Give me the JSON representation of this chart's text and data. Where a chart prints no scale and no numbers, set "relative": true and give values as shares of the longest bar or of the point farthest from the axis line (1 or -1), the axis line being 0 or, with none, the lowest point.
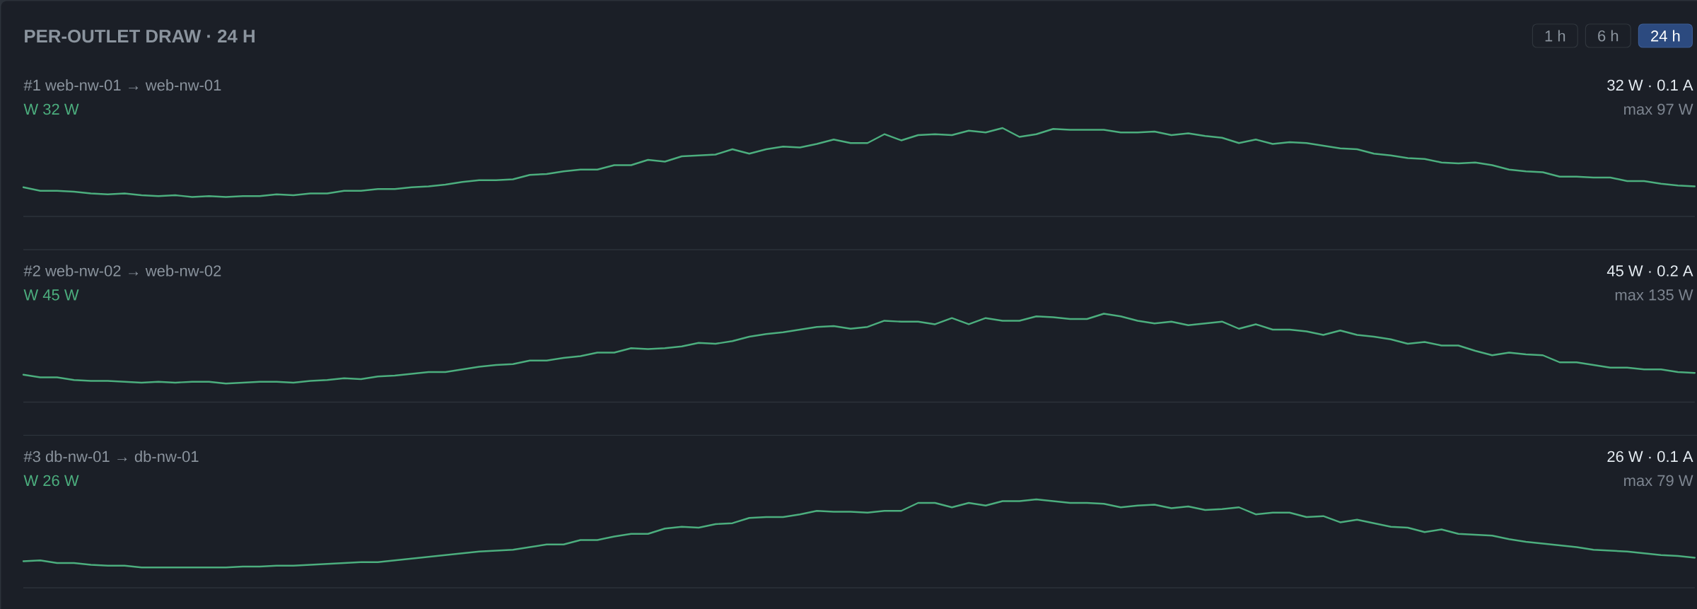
{
  "chart_data": [
    {
      "type": "other",
      "title": "PER-OUTLET DRAW · 24 H",
      "annotations": [
        "1 h",
        "6 h",
        "24 h"
      ]
    },
    {
      "type": "line",
      "title": "#1 web-nw-01 → web-nw-01",
      "subtitle": "W 32 W",
      "annotations": [
        "32 W · 0.1 A",
        "max 97 W"
      ],
      "relative": true,
      "categories": [
        null,
        null,
        null,
        null,
        null,
        null,
        null,
        null,
        null,
        null,
        null,
        null,
        null,
        null,
        null,
        null,
        null,
        null,
        null,
        null,
        null,
        null,
        null,
        null,
        null,
        null,
        null,
        null,
        null,
        null,
        null,
        null,
        null,
        null,
        null,
        null,
        null,
        null,
        null,
        null,
        null,
        null,
        null,
        null,
        null,
        null,
        null,
        null,
        null,
        null,
        null,
        null,
        null,
        null,
        null,
        null,
        null,
        null,
        null,
        null,
        null,
        null,
        null,
        null,
        null,
        null,
        null,
        null,
        null,
        null,
        null,
        null,
        null,
        null,
        null,
        null,
        null,
        null,
        null,
        null,
        null,
        null,
        null,
        null,
        null,
        null,
        null,
        null,
        null,
        null,
        null,
        null,
        null,
        null,
        null,
        null,
        null,
        null,
        null,
        null
      ],
      "series": [
        {
          "color": "#4cae7e",
          "values": [
            0.33,
            0.29,
            0.29,
            0.28,
            0.26,
            0.25,
            0.26,
            0.24,
            0.23,
            0.24,
            0.22,
            0.23,
            0.22,
            0.23,
            0.23,
            0.25,
            0.24,
            0.26,
            0.26,
            0.29,
            0.29,
            0.31,
            0.31,
            0.33,
            0.34,
            0.36,
            0.39,
            0.41,
            0.41,
            0.42,
            0.47,
            0.48,
            0.51,
            0.53,
            0.53,
            0.58,
            0.58,
            0.64,
            0.62,
            0.68,
            0.69,
            0.7,
            0.76,
            0.71,
            0.76,
            0.79,
            0.78,
            0.82,
            0.87,
            0.83,
            0.83,
            0.93,
            0.86,
            0.92,
            0.93,
            0.92,
            0.97,
            0.95,
            1.0,
            0.9,
            0.93,
            0.99,
            0.98,
            0.98,
            0.98,
            0.95,
            0.95,
            0.96,
            0.92,
            0.94,
            0.91,
            0.89,
            0.83,
            0.87,
            0.82,
            0.84,
            0.83,
            0.8,
            0.77,
            0.76,
            0.71,
            0.69,
            0.66,
            0.65,
            0.61,
            0.6,
            0.61,
            0.58,
            0.53,
            0.51,
            0.5,
            0.45,
            0.45,
            0.44,
            0.44,
            0.4,
            0.4,
            0.37,
            0.35,
            0.34
          ]
        }
      ]
    },
    {
      "type": "line",
      "title": "#2 web-nw-02 → web-nw-02",
      "subtitle": "W 45 W",
      "annotations": [
        "45 W · 0.2 A",
        "max 135 W"
      ],
      "relative": true,
      "categories": [
        null,
        null,
        null,
        null,
        null,
        null,
        null,
        null,
        null,
        null,
        null,
        null,
        null,
        null,
        null,
        null,
        null,
        null,
        null,
        null,
        null,
        null,
        null,
        null,
        null,
        null,
        null,
        null,
        null,
        null,
        null,
        null,
        null,
        null,
        null,
        null,
        null,
        null,
        null,
        null,
        null,
        null,
        null,
        null,
        null,
        null,
        null,
        null,
        null,
        null,
        null,
        null,
        null,
        null,
        null,
        null,
        null,
        null,
        null,
        null,
        null,
        null,
        null,
        null,
        null,
        null,
        null,
        null,
        null,
        null,
        null,
        null,
        null,
        null,
        null,
        null,
        null,
        null,
        null,
        null,
        null,
        null,
        null,
        null,
        null,
        null,
        null,
        null,
        null,
        null,
        null,
        null,
        null,
        null,
        null,
        null,
        null,
        null,
        null,
        null
      ],
      "series": [
        {
          "color": "#4cae7e",
          "values": [
            0.31,
            0.28,
            0.28,
            0.25,
            0.24,
            0.24,
            0.23,
            0.22,
            0.23,
            0.22,
            0.23,
            0.23,
            0.21,
            0.22,
            0.23,
            0.23,
            0.22,
            0.24,
            0.25,
            0.27,
            0.26,
            0.29,
            0.3,
            0.32,
            0.34,
            0.34,
            0.37,
            0.4,
            0.42,
            0.43,
            0.47,
            0.47,
            0.5,
            0.52,
            0.56,
            0.56,
            0.61,
            0.6,
            0.61,
            0.63,
            0.67,
            0.66,
            0.69,
            0.74,
            0.77,
            0.79,
            0.82,
            0.85,
            0.86,
            0.83,
            0.85,
            0.92,
            0.91,
            0.91,
            0.88,
            0.95,
            0.88,
            0.95,
            0.92,
            0.92,
            0.97,
            0.96,
            0.94,
            0.94,
            1.0,
            0.97,
            0.92,
            0.89,
            0.91,
            0.87,
            0.89,
            0.91,
            0.83,
            0.88,
            0.82,
            0.82,
            0.8,
            0.76,
            0.81,
            0.76,
            0.74,
            0.71,
            0.66,
            0.68,
            0.64,
            0.64,
            0.58,
            0.53,
            0.56,
            0.54,
            0.53,
            0.45,
            0.45,
            0.42,
            0.39,
            0.39,
            0.37,
            0.37,
            0.34,
            0.33
          ]
        }
      ]
    },
    {
      "type": "line",
      "title": "#3 db-nw-01 → db-nw-01",
      "subtitle": "W 26 W",
      "annotations": [
        "26 W · 0.1 A",
        "max 79 W"
      ],
      "relative": true,
      "categories": [
        null,
        null,
        null,
        null,
        null,
        null,
        null,
        null,
        null,
        null,
        null,
        null,
        null,
        null,
        null,
        null,
        null,
        null,
        null,
        null,
        null,
        null,
        null,
        null,
        null,
        null,
        null,
        null,
        null,
        null,
        null,
        null,
        null,
        null,
        null,
        null,
        null,
        null,
        null,
        null,
        null,
        null,
        null,
        null,
        null,
        null,
        null,
        null,
        null,
        null,
        null,
        null,
        null,
        null,
        null,
        null,
        null,
        null,
        null,
        null,
        null,
        null,
        null,
        null,
        null,
        null,
        null,
        null,
        null,
        null,
        null,
        null,
        null,
        null,
        null,
        null,
        null,
        null,
        null,
        null,
        null,
        null,
        null,
        null,
        null,
        null,
        null,
        null,
        null,
        null,
        null,
        null,
        null,
        null,
        null,
        null,
        null,
        null,
        null,
        null
      ],
      "series": [
        {
          "color": "#4cae7e",
          "values": [
            0.3,
            0.31,
            0.28,
            0.28,
            0.26,
            0.25,
            0.25,
            0.23,
            0.23,
            0.23,
            0.23,
            0.23,
            0.23,
            0.24,
            0.24,
            0.25,
            0.25,
            0.26,
            0.27,
            0.28,
            0.29,
            0.29,
            0.31,
            0.33,
            0.35,
            0.37,
            0.39,
            0.41,
            0.42,
            0.43,
            0.46,
            0.49,
            0.49,
            0.54,
            0.54,
            0.58,
            0.61,
            0.61,
            0.67,
            0.69,
            0.68,
            0.72,
            0.73,
            0.79,
            0.8,
            0.8,
            0.83,
            0.87,
            0.86,
            0.86,
            0.85,
            0.87,
            0.87,
            0.96,
            0.96,
            0.91,
            0.96,
            0.93,
            0.98,
            0.98,
            1.0,
            0.98,
            0.96,
            0.96,
            0.95,
            0.91,
            0.93,
            0.94,
            0.9,
            0.92,
            0.88,
            0.89,
            0.91,
            0.83,
            0.85,
            0.85,
            0.8,
            0.81,
            0.74,
            0.77,
            0.73,
            0.69,
            0.68,
            0.63,
            0.66,
            0.61,
            0.6,
            0.59,
            0.55,
            0.52,
            0.5,
            0.48,
            0.46,
            0.43,
            0.42,
            0.41,
            0.39,
            0.37,
            0.36,
            0.34
          ]
        }
      ]
    }
  ]
}
